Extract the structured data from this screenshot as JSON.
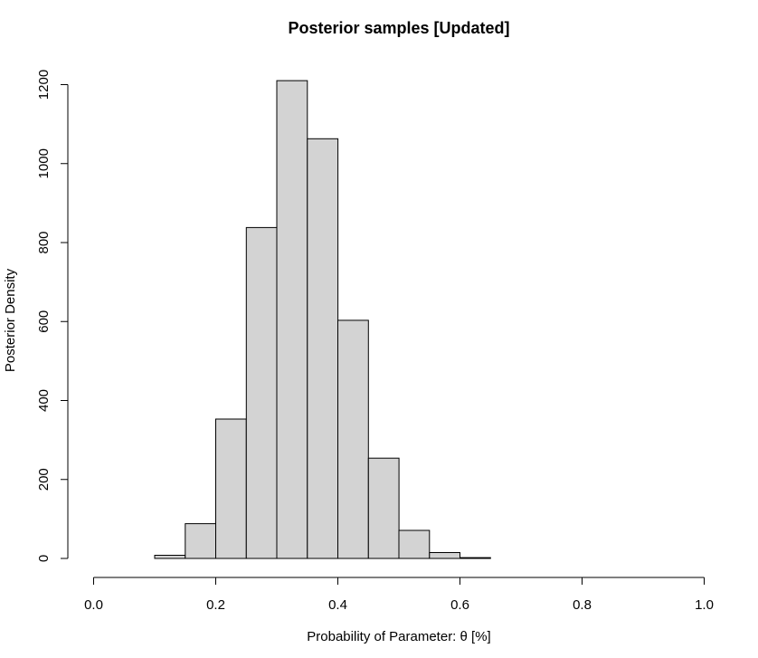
{
  "chart_data": {
    "type": "bar",
    "title": "Posterior samples [Updated]",
    "xlabel": "Probability of Parameter: θ [%]",
    "ylabel": "Posterior Density",
    "xlim": [
      0.0,
      1.0
    ],
    "ylim": [
      0,
      1200
    ],
    "x_ticks": [
      "0.0",
      "0.2",
      "0.4",
      "0.6",
      "0.8",
      "1.0"
    ],
    "y_ticks": [
      "0",
      "200",
      "400",
      "600",
      "800",
      "1000",
      "1200"
    ],
    "bin_width": 0.05,
    "bins": [
      {
        "start": 0.1,
        "end": 0.15,
        "value": 8
      },
      {
        "start": 0.15,
        "end": 0.2,
        "value": 88
      },
      {
        "start": 0.2,
        "end": 0.25,
        "value": 353
      },
      {
        "start": 0.25,
        "end": 0.3,
        "value": 838
      },
      {
        "start": 0.3,
        "end": 0.35,
        "value": 1210
      },
      {
        "start": 0.35,
        "end": 0.4,
        "value": 1063
      },
      {
        "start": 0.4,
        "end": 0.45,
        "value": 603
      },
      {
        "start": 0.45,
        "end": 0.5,
        "value": 254
      },
      {
        "start": 0.5,
        "end": 0.55,
        "value": 71
      },
      {
        "start": 0.55,
        "end": 0.6,
        "value": 15
      },
      {
        "start": 0.6,
        "end": 0.65,
        "value": 2
      }
    ],
    "bar_color": "#d3d3d3",
    "edge_color": "#000000",
    "grid": false,
    "legend": "none"
  }
}
